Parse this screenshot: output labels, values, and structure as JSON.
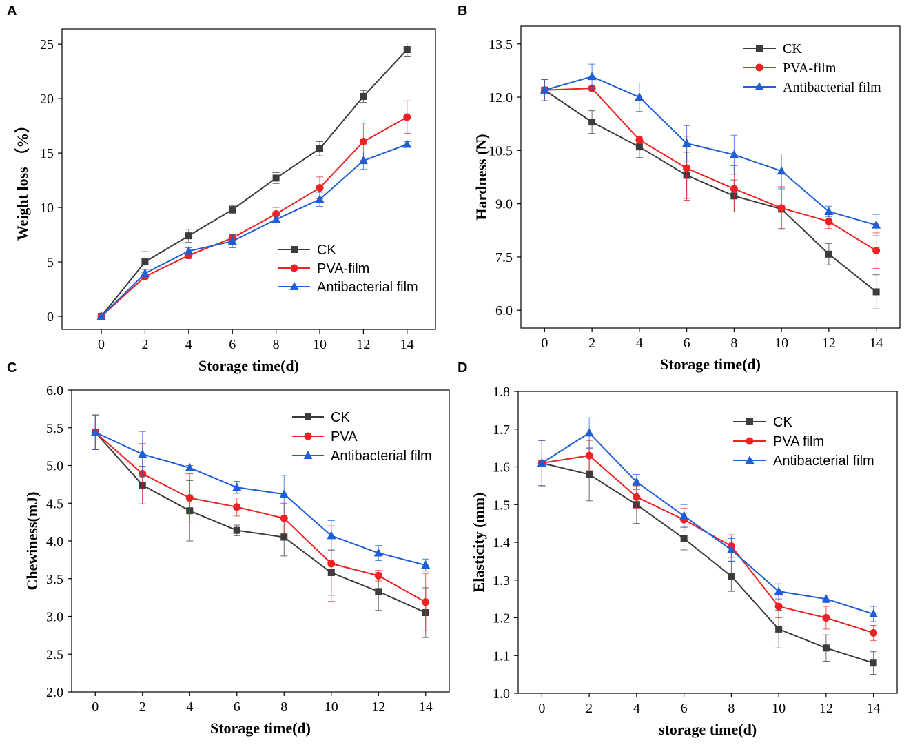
{
  "colors": {
    "CK": "#3c3c3c",
    "PVA": "#ee2222",
    "AB": "#1f5fd6"
  },
  "x": [
    0,
    2,
    4,
    6,
    8,
    10,
    12,
    14
  ],
  "chart_data": [
    {
      "id": "A",
      "type": "line",
      "panel": "A",
      "xlabel": "Storage time(d)",
      "ylabel": "Weight loss （%）",
      "xlim": [
        -1.8,
        15.3
      ],
      "ylim": [
        -1.2,
        26.4
      ],
      "xticks": [
        0,
        2,
        4,
        6,
        8,
        10,
        12,
        14
      ],
      "yticks": [
        0,
        5,
        10,
        15,
        20,
        25
      ],
      "ytick_labels": [
        "0",
        "5",
        "10",
        "15",
        "20",
        "25"
      ],
      "legend_position": "bottom-right",
      "series": [
        {
          "key": "CK",
          "name": "CK",
          "marker": "square",
          "values": [
            0,
            5.0,
            7.4,
            9.8,
            12.7,
            15.4,
            20.2,
            24.5
          ],
          "errors": [
            0,
            0.95,
            0.6,
            0.35,
            0.5,
            0.65,
            0.55,
            0.6
          ]
        },
        {
          "key": "PVA",
          "name": "PVA-film",
          "marker": "circle",
          "values": [
            0,
            3.65,
            5.6,
            7.2,
            9.4,
            11.8,
            16.05,
            18.3
          ],
          "errors": [
            0,
            0.2,
            0.3,
            0.3,
            0.6,
            1.0,
            1.7,
            1.5
          ]
        },
        {
          "key": "AB",
          "name": "Antibacterial film",
          "marker": "triangle",
          "values": [
            0,
            3.95,
            6.0,
            6.9,
            8.9,
            10.75,
            14.3,
            15.8
          ],
          "errors": [
            0,
            0.35,
            0.3,
            0.6,
            0.7,
            0.65,
            0.8,
            0.25
          ]
        }
      ]
    },
    {
      "id": "B",
      "type": "line",
      "panel": "B",
      "xlabel": "Storage time(d)",
      "ylabel": "Hardness (N)",
      "xlim": [
        -1.0,
        15.0
      ],
      "ylim": [
        5.5,
        14.0
      ],
      "xticks": [
        0,
        2,
        4,
        6,
        8,
        10,
        12,
        14
      ],
      "yticks": [
        6.0,
        7.5,
        9.0,
        10.5,
        12.0,
        13.5
      ],
      "ytick_labels": [
        "6.0",
        "7.5",
        "9.0",
        "10.5",
        "12.0",
        "13.5"
      ],
      "legend_position": "top-right",
      "series": [
        {
          "key": "CK",
          "name": "CK",
          "marker": "square",
          "values": [
            12.2,
            11.3,
            10.6,
            9.8,
            9.22,
            8.85,
            7.58,
            6.52
          ],
          "errors": [
            0.3,
            0.32,
            0.3,
            0.65,
            0.45,
            0.55,
            0.3,
            0.48
          ]
        },
        {
          "key": "PVA",
          "name": "PVA-film",
          "marker": "circle",
          "values": [
            12.2,
            12.25,
            10.8,
            10.0,
            9.42,
            8.88,
            8.5,
            7.68
          ],
          "errors": [
            0.3,
            0.05,
            0.1,
            0.9,
            0.65,
            0.6,
            0.2,
            0.5
          ]
        },
        {
          "key": "AB",
          "name": "Antibacterial film",
          "marker": "triangle",
          "values": [
            12.2,
            12.58,
            12.0,
            10.7,
            10.38,
            9.92,
            8.78,
            8.4
          ],
          "errors": [
            0.3,
            0.35,
            0.4,
            0.5,
            0.55,
            0.48,
            0.15,
            0.3
          ]
        }
      ]
    },
    {
      "id": "C",
      "type": "line",
      "panel": "C",
      "xlabel": "Storage time(d)",
      "ylabel": "Chewiness(mJ)",
      "xlim": [
        -1.0,
        15.0
      ],
      "ylim": [
        2.0,
        6.0
      ],
      "xticks": [
        0,
        2,
        4,
        6,
        8,
        10,
        12,
        14
      ],
      "yticks": [
        2.0,
        2.5,
        3.0,
        3.5,
        4.0,
        4.5,
        5.0,
        5.5,
        6.0
      ],
      "ytick_labels": [
        "2.0",
        "2.5",
        "3.0",
        "3.5",
        "4.0",
        "4.5",
        "5.0",
        "5.5",
        "6.0"
      ],
      "legend_position": "top-right",
      "series": [
        {
          "key": "CK",
          "name": "CK",
          "marker": "square",
          "values": [
            5.44,
            4.74,
            4.4,
            4.14,
            4.05,
            3.58,
            3.33,
            3.05
          ],
          "errors": [
            0.23,
            0.25,
            0.4,
            0.07,
            0.25,
            0.3,
            0.25,
            0.33
          ]
        },
        {
          "key": "PVA",
          "name": "PVA",
          "marker": "circle",
          "values": [
            5.44,
            4.89,
            4.57,
            4.45,
            4.3,
            3.7,
            3.54,
            3.19
          ],
          "errors": [
            0.23,
            0.4,
            0.32,
            0.12,
            0.2,
            0.5,
            0.07,
            0.38
          ]
        },
        {
          "key": "AB",
          "name": "Antibacterial film",
          "marker": "triangle",
          "values": [
            5.44,
            5.15,
            4.97,
            4.71,
            4.62,
            4.07,
            3.84,
            3.68
          ],
          "errors": [
            0.23,
            0.3,
            0.03,
            0.08,
            0.25,
            0.2,
            0.1,
            0.08
          ]
        }
      ]
    },
    {
      "id": "D",
      "type": "line",
      "panel": "D",
      "xlabel": "storage time(d)",
      "ylabel": "Elasticity (mm)",
      "xlim": [
        -1.0,
        15.0
      ],
      "ylim": [
        1.0,
        1.8
      ],
      "xticks": [
        0,
        2,
        4,
        6,
        8,
        10,
        12,
        14
      ],
      "yticks": [
        1.0,
        1.1,
        1.2,
        1.3,
        1.4,
        1.5,
        1.6,
        1.7,
        1.8
      ],
      "ytick_labels": [
        "1.0",
        "1.1",
        "1.2",
        "1.3",
        "1.4",
        "1.5",
        "1.6",
        "1.7",
        "1.8"
      ],
      "legend_position": "top-right",
      "series": [
        {
          "key": "CK",
          "name": "CK",
          "marker": "square",
          "values": [
            1.61,
            1.58,
            1.5,
            1.41,
            1.31,
            1.17,
            1.12,
            1.08
          ],
          "errors": [
            0.06,
            0.07,
            0.05,
            0.03,
            0.04,
            0.05,
            0.035,
            0.03
          ]
        },
        {
          "key": "PVA",
          "name": "PVA film",
          "marker": "circle",
          "values": [
            1.61,
            1.63,
            1.52,
            1.46,
            1.39,
            1.23,
            1.2,
            1.16
          ],
          "errors": [
            0.06,
            0.04,
            0.03,
            0.03,
            0.03,
            0.03,
            0.03,
            0.02
          ]
        },
        {
          "key": "AB",
          "name": "Antibacterial film",
          "marker": "triangle",
          "values": [
            1.61,
            1.69,
            1.56,
            1.47,
            1.38,
            1.27,
            1.25,
            1.21
          ],
          "errors": [
            0.06,
            0.04,
            0.02,
            0.03,
            0.03,
            0.02,
            0.01,
            0.02
          ]
        }
      ]
    }
  ]
}
